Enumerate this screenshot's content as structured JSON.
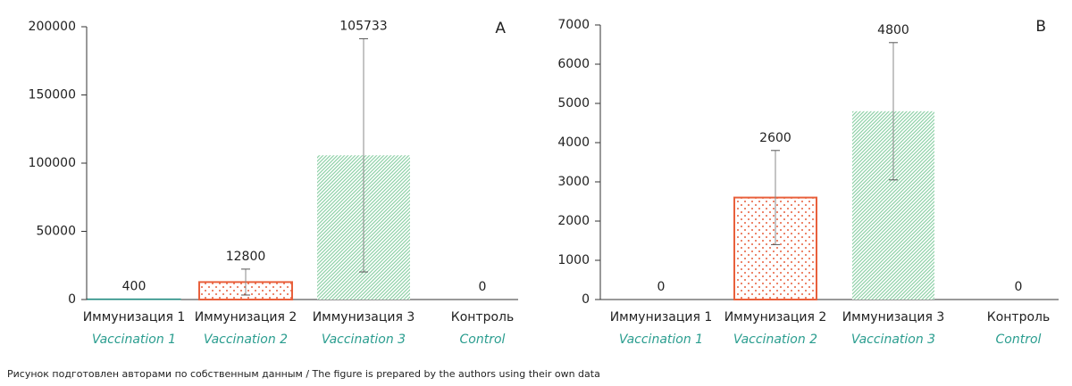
{
  "chart_data": [
    {
      "type": "bar",
      "panel": "A",
      "categories": [
        "Иммунизация 1",
        "Иммунизация 2",
        "Иммунизация 3",
        "Контроль"
      ],
      "categories_en": [
        "Vaccination 1",
        "Vaccination 2",
        "Vaccination 3",
        "Control"
      ],
      "values": [
        400,
        12800,
        105733,
        0
      ],
      "errors": [
        null,
        9500,
        85500,
        null
      ],
      "colors": [
        "#1f8a80",
        "#e8603c",
        "#8fd1a8",
        "#1f8a80"
      ],
      "patterns": [
        "solid",
        "dots",
        "hatch",
        "solid"
      ],
      "ylim": [
        0,
        200000
      ],
      "yticks": [
        0,
        50000,
        100000,
        150000,
        200000
      ]
    },
    {
      "type": "bar",
      "panel": "B",
      "categories": [
        "Иммунизация 1",
        "Иммунизация 2",
        "Иммунизация 3",
        "Контроль"
      ],
      "categories_en": [
        "Vaccination 1",
        "Vaccination 2",
        "Vaccination 3",
        "Control"
      ],
      "values": [
        0,
        2600,
        4800,
        0
      ],
      "errors": [
        null,
        1200,
        1750,
        null
      ],
      "colors": [
        "#1f8a80",
        "#e8603c",
        "#8fd1a8",
        "#1f8a80"
      ],
      "patterns": [
        "solid",
        "dots",
        "hatch",
        "solid"
      ],
      "ylim": [
        0,
        7000
      ],
      "yticks": [
        0,
        1000,
        2000,
        3000,
        4000,
        5000,
        6000,
        7000
      ]
    }
  ],
  "caption": "Рисунок подготовлен авторами по собственным данным / The figure is prepared by the authors using their own data"
}
